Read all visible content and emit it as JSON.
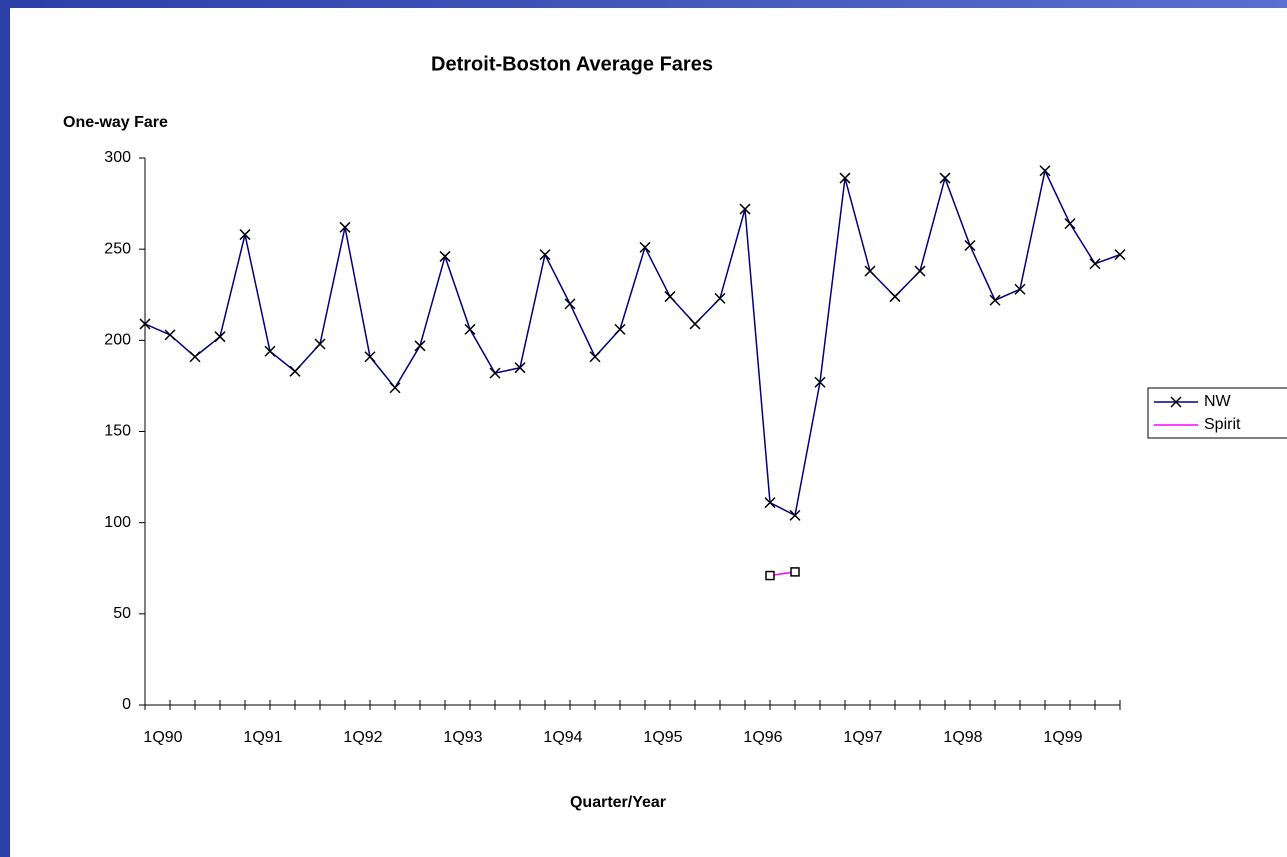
{
  "chart_data": {
    "type": "line",
    "title": "Detroit-Boston Average Fares",
    "y_label": "One-way Fare",
    "x_label": "Quarter/Year",
    "categories": [
      "1Q90",
      null,
      null,
      null,
      "1Q91",
      null,
      null,
      null,
      "1Q92",
      null,
      null,
      null,
      "1Q93",
      null,
      null,
      null,
      "1Q94",
      null,
      null,
      null,
      "1Q95",
      null,
      null,
      null,
      "1Q96",
      null,
      null,
      null,
      "1Q97",
      null,
      null,
      null,
      "1Q98",
      null,
      null,
      null,
      "1Q99",
      null,
      null,
      null
    ],
    "series": [
      {
        "name": "NW",
        "color": "#000080",
        "marker": "x",
        "values": [
          209,
          203,
          191,
          202,
          258,
          194,
          183,
          198,
          262,
          191,
          174,
          197,
          246,
          206,
          182,
          185,
          247,
          220,
          191,
          206,
          251,
          224,
          209,
          223,
          272,
          111,
          104,
          177,
          289,
          238,
          224,
          238,
          289,
          252,
          222,
          228,
          293,
          264,
          242,
          247
        ]
      },
      {
        "name": "Spirit",
        "color": "#ff00ff",
        "marker": "square",
        "values": [
          null,
          null,
          null,
          null,
          null,
          null,
          null,
          null,
          null,
          null,
          null,
          null,
          null,
          null,
          null,
          null,
          null,
          null,
          null,
          null,
          null,
          null,
          null,
          null,
          null,
          71,
          73,
          null,
          null,
          null,
          null,
          null,
          null,
          null,
          null,
          null,
          null,
          null,
          null,
          null
        ]
      }
    ],
    "ylim": [
      0,
      300
    ],
    "yticks": [
      0,
      50,
      100,
      150,
      200,
      250,
      300
    ],
    "legend": "right"
  }
}
